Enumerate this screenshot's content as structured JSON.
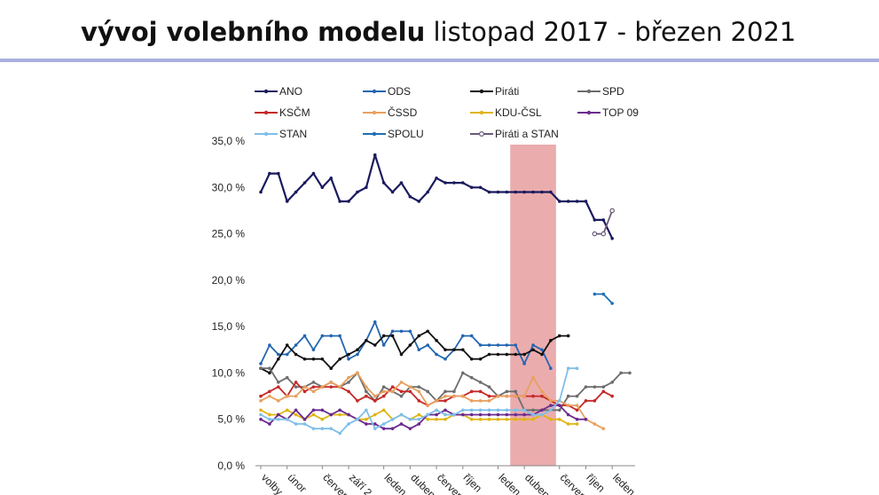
{
  "header": {
    "title_bold": "vývoj volebního modelu",
    "title_regular": "listopad 2017 - březen 2021",
    "rule_color": "#a9b0df"
  },
  "chart_data": {
    "type": "line",
    "title": "",
    "xlabel": "",
    "ylabel": "",
    "ylim": [
      0,
      35
    ],
    "yticks": [
      "0,0 %",
      "5,0 %",
      "10,0 %",
      "15,0 %",
      "20,0 %",
      "25,0 %",
      "30,0 %",
      "35,0 %"
    ],
    "xticks": [
      {
        "label": "volby",
        "index": 0
      },
      {
        "label": "únor",
        "index": 3
      },
      {
        "label": "červen",
        "index": 7
      },
      {
        "label": "září 2",
        "index": 10
      },
      {
        "label": "leden",
        "index": 14
      },
      {
        "label": "duben",
        "index": 17
      },
      {
        "label": "červen",
        "index": 20
      },
      {
        "label": "říjen",
        "index": 23
      },
      {
        "label": "leden",
        "index": 27
      },
      {
        "label": "duben",
        "index": 30
      },
      {
        "label": "červen",
        "index": 34
      },
      {
        "label": "říjen",
        "index": 37
      },
      {
        "label": "leden",
        "index": 40
      }
    ],
    "n_points": 43,
    "grid": false,
    "legend_position": "top",
    "highlight": {
      "from_index": 29,
      "to_index": 33,
      "color": "#e9a3a5"
    },
    "series": [
      {
        "name": "ANO",
        "color": "#1b1a5e",
        "marker": "circle",
        "start": 0,
        "values": [
          29.5,
          31.5,
          31.5,
          28.5,
          29.5,
          30.5,
          31.5,
          30.0,
          31.0,
          28.5,
          28.5,
          29.5,
          30.0,
          33.5,
          30.5,
          29.5,
          30.5,
          29.0,
          28.5,
          29.5,
          31.0,
          30.5,
          30.5,
          30.5,
          30.0,
          30.0,
          29.5,
          29.5,
          29.5,
          29.5,
          29.5,
          29.5,
          29.5,
          29.5,
          28.5,
          28.5,
          28.5,
          28.5,
          26.5,
          26.5,
          24.5
        ]
      },
      {
        "name": "ODS",
        "color": "#2366b1",
        "marker": "circle",
        "start": 0,
        "values": [
          11.0,
          13.0,
          12.0,
          12.0,
          13.0,
          14.0,
          12.5,
          14.0,
          14.0,
          14.0,
          11.5,
          12.0,
          13.5,
          15.5,
          13.0,
          14.5,
          14.5,
          14.5,
          12.5,
          13.0,
          12.0,
          11.5,
          12.5,
          14.0,
          14.0,
          13.0,
          13.0,
          13.0,
          13.0,
          13.0,
          11.0,
          13.0,
          12.5,
          10.5
        ]
      },
      {
        "name": "Piráti",
        "color": "#111111",
        "marker": "circle",
        "start": 0,
        "values": [
          10.5,
          10.0,
          11.5,
          13.0,
          12.0,
          11.5,
          11.5,
          11.5,
          10.5,
          11.5,
          12.0,
          12.5,
          13.5,
          13.0,
          14.0,
          14.0,
          12.0,
          13.0,
          14.0,
          14.5,
          13.5,
          12.5,
          12.5,
          12.5,
          11.5,
          11.5,
          12.0,
          12.0,
          12.0,
          12.0,
          12.0,
          12.5,
          12.0,
          13.5,
          14.0,
          14.0
        ]
      },
      {
        "name": "SPD",
        "color": "#6d6d6d",
        "marker": "circle",
        "start": 0,
        "values": [
          10.5,
          10.5,
          9.0,
          9.5,
          8.5,
          8.5,
          9.0,
          8.5,
          9.0,
          8.5,
          9.0,
          10.0,
          8.0,
          7.0,
          8.5,
          8.0,
          7.5,
          8.5,
          8.5,
          8.0,
          7.0,
          8.0,
          8.0,
          10.0,
          9.5,
          9.0,
          8.5,
          7.5,
          8.0,
          8.0,
          6.0,
          6.0,
          6.0,
          6.0,
          6.0,
          7.5,
          7.5,
          8.5,
          8.5,
          8.5,
          9.0,
          10.0,
          10.0
        ]
      },
      {
        "name": "KSČM",
        "color": "#c62828",
        "marker": "circle",
        "start": 0,
        "values": [
          7.5,
          8.0,
          8.5,
          7.5,
          9.0,
          8.0,
          8.5,
          8.5,
          8.5,
          8.5,
          8.0,
          7.0,
          7.5,
          7.0,
          7.5,
          8.5,
          8.0,
          8.0,
          7.0,
          6.5,
          7.0,
          7.0,
          7.5,
          7.5,
          8.0,
          8.0,
          7.5,
          7.5,
          7.5,
          7.5,
          7.5,
          7.5,
          7.5,
          7.0,
          6.5,
          6.5,
          6.0,
          7.0,
          7.0,
          8.0,
          7.5
        ]
      },
      {
        "name": "ČSSD",
        "color": "#e8a05e",
        "marker": "circle",
        "start": 0,
        "values": [
          7.0,
          7.5,
          7.0,
          7.5,
          7.5,
          8.5,
          8.0,
          8.5,
          9.0,
          8.5,
          9.5,
          10.0,
          8.5,
          7.5,
          8.0,
          8.0,
          9.0,
          8.5,
          8.0,
          6.5,
          7.0,
          7.5,
          7.5,
          7.5,
          7.0,
          7.0,
          7.0,
          7.5,
          7.5,
          7.5,
          7.5,
          9.5,
          8.0,
          7.0,
          7.0,
          6.5,
          6.5,
          5.0,
          4.5,
          4.0
        ]
      },
      {
        "name": "KDU-ČSL",
        "color": "#e0b414",
        "marker": "circle",
        "start": 0,
        "values": [
          6.0,
          5.5,
          5.5,
          6.0,
          5.5,
          5.0,
          5.5,
          5.0,
          5.5,
          5.5,
          5.5,
          5.0,
          5.0,
          5.5,
          6.0,
          5.0,
          5.5,
          5.0,
          5.5,
          5.0,
          5.0,
          5.0,
          5.5,
          5.5,
          5.0,
          5.0,
          5.0,
          5.0,
          5.0,
          5.0,
          5.0,
          5.0,
          5.5,
          5.0,
          5.0,
          4.5,
          4.5
        ]
      },
      {
        "name": "TOP 09",
        "color": "#6b2a8f",
        "marker": "circle",
        "start": 0,
        "values": [
          5.0,
          4.5,
          5.5,
          5.0,
          6.0,
          5.0,
          6.0,
          6.0,
          5.5,
          6.0,
          5.5,
          5.0,
          4.5,
          4.5,
          4.0,
          4.0,
          4.5,
          4.0,
          4.5,
          5.5,
          5.5,
          6.0,
          5.5,
          5.5,
          5.5,
          5.5,
          5.5,
          5.5,
          5.5,
          5.5,
          5.5,
          5.5,
          6.0,
          6.5,
          6.5,
          5.5,
          5.0,
          5.0
        ]
      },
      {
        "name": "STAN",
        "color": "#7fbfe8",
        "marker": "circle",
        "start": 0,
        "values": [
          5.5,
          5.0,
          5.0,
          5.0,
          4.5,
          4.5,
          4.0,
          4.0,
          4.0,
          3.5,
          4.5,
          5.0,
          6.0,
          4.0,
          4.5,
          5.0,
          5.5,
          5.0,
          5.0,
          5.5,
          6.0,
          5.5,
          5.5,
          6.0,
          6.0,
          6.0,
          6.0,
          6.0,
          6.0,
          6.0,
          6.0,
          5.5,
          5.5,
          6.0,
          7.0,
          10.5,
          10.5
        ]
      },
      {
        "name": "SPOLU",
        "color": "#1f6fb4",
        "marker": "circle",
        "start": 38,
        "values": [
          18.5,
          18.5,
          17.5
        ]
      },
      {
        "name": "Piráti a STAN",
        "color": "#6a5a7a",
        "marker": "circle-open",
        "start": 38,
        "values": [
          25.0,
          25.0,
          27.5
        ]
      }
    ]
  }
}
